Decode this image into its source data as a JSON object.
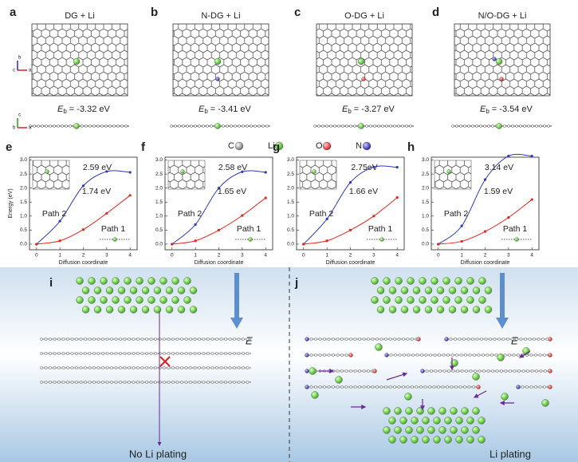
{
  "panels": [
    {
      "label": "a",
      "title": "DG + Li",
      "energy": "= -3.32 eV"
    },
    {
      "label": "b",
      "title": "N-DG + Li",
      "energy": "= -3.41 eV"
    },
    {
      "label": "c",
      "title": "O-DG + Li",
      "energy": "= -3.27 eV"
    },
    {
      "label": "d",
      "title": "N/O-DG + Li",
      "energy": "= -3.54 eV"
    }
  ],
  "energy_symbol": "E",
  "energy_subscript": "b",
  "crystal_axes": {
    "top": [
      "b",
      "c",
      "a"
    ],
    "side": [
      "c",
      "b",
      "a"
    ]
  },
  "legend": [
    "C",
    "Li",
    "O",
    "N"
  ],
  "chart_data": [
    {
      "type": "line",
      "label": "e",
      "xlabel": "Diffusion coordinate",
      "ylabel": "Energy (eV)",
      "x": [
        0,
        1,
        2,
        3,
        4
      ],
      "xlim": [
        -0.3,
        4.3
      ],
      "ylim": [
        -0.2,
        3.1
      ],
      "xticks": [
        0,
        1,
        2,
        3,
        4
      ],
      "yticks": [
        {
          "value": 0,
          "label": "0.0"
        },
        {
          "value": 0.5,
          "label": "0.5"
        },
        {
          "value": 1,
          "label": "1.0"
        },
        {
          "value": 1.5,
          "label": "1.5"
        },
        {
          "value": 2,
          "label": "2.0"
        },
        {
          "value": 2.5,
          "label": "2.5"
        },
        {
          "value": 3,
          "label": "3.0"
        }
      ],
      "series": [
        {
          "name": "Path 2",
          "color": "#2b3bb8",
          "values": [
            0,
            0.82,
            2.08,
            2.59,
            2.56
          ],
          "annotation": "2.59 eV"
        },
        {
          "name": "Path 1",
          "color": "#e8251c",
          "values": [
            0,
            0.12,
            0.52,
            1.1,
            1.74
          ],
          "annotation": "1.74 eV"
        }
      ]
    },
    {
      "type": "line",
      "label": "f",
      "xlabel": "Diffusion coordinate",
      "x": [
        0,
        1,
        2,
        3,
        4
      ],
      "xlim": [
        -0.3,
        4.3
      ],
      "ylim": [
        -0.2,
        3.1
      ],
      "xticks": [
        0,
        1,
        2,
        3,
        4
      ],
      "yticks": [
        {
          "value": 0,
          "label": "0.0"
        },
        {
          "value": 0.5,
          "label": "0.5"
        },
        {
          "value": 1,
          "label": "1.0"
        },
        {
          "value": 1.5,
          "label": "1.5"
        },
        {
          "value": 2,
          "label": "2.0"
        },
        {
          "value": 2.5,
          "label": "2.5"
        },
        {
          "value": 3,
          "label": "3.0"
        }
      ],
      "series": [
        {
          "name": "Path 2",
          "color": "#2b3bb8",
          "values": [
            0,
            0.7,
            2.0,
            2.58,
            2.56
          ],
          "annotation": "2.58 eV"
        },
        {
          "name": "Path 1",
          "color": "#e8251c",
          "values": [
            0,
            0.12,
            0.5,
            1.02,
            1.65
          ],
          "annotation": "1.65 eV"
        }
      ]
    },
    {
      "type": "line",
      "label": "g",
      "xlabel": "Diffusion coordinate",
      "x": [
        0,
        1,
        2,
        3,
        4
      ],
      "xlim": [
        -0.3,
        4.3
      ],
      "ylim": [
        -0.2,
        3.1
      ],
      "xticks": [
        0,
        1,
        2,
        3,
        4
      ],
      "yticks": [
        {
          "value": 0,
          "label": "0.0"
        },
        {
          "value": 0.5,
          "label": "0.5"
        },
        {
          "value": 1,
          "label": "1.0"
        },
        {
          "value": 1.5,
          "label": "1.5"
        },
        {
          "value": 2,
          "label": "2.0"
        },
        {
          "value": 2.5,
          "label": "2.5"
        },
        {
          "value": 3,
          "label": "3.0"
        }
      ],
      "series": [
        {
          "name": "Path 2",
          "color": "#2b3bb8",
          "values": [
            0,
            0.9,
            2.2,
            2.75,
            2.74
          ],
          "annotation": "2.75eV"
        },
        {
          "name": "Path 1",
          "color": "#e8251c",
          "values": [
            0,
            0.12,
            0.5,
            1.0,
            1.66
          ],
          "annotation": "1.66 eV"
        }
      ]
    },
    {
      "type": "line",
      "label": "h",
      "xlabel": "Diffusion coordinate",
      "x": [
        0,
        1,
        2,
        3,
        4
      ],
      "xlim": [
        -0.3,
        4.3
      ],
      "ylim": [
        -0.2,
        3.1
      ],
      "xticks": [
        0,
        1,
        2,
        3,
        4
      ],
      "yticks": [
        {
          "value": 0,
          "label": "0.0"
        },
        {
          "value": 0.5,
          "label": "0.5"
        },
        {
          "value": 1,
          "label": "1.0"
        },
        {
          "value": 1.5,
          "label": "1.5"
        },
        {
          "value": 2,
          "label": "2.0"
        },
        {
          "value": 2.5,
          "label": "2.5"
        },
        {
          "value": 3,
          "label": "3.0"
        }
      ],
      "series": [
        {
          "name": "Path 2",
          "color": "#2b3bb8",
          "values": [
            0,
            0.65,
            2.3,
            3.14,
            3.14
          ],
          "annotation": "3.14 eV"
        },
        {
          "name": "Path 1",
          "color": "#e8251c",
          "values": [
            0,
            0.1,
            0.45,
            0.95,
            1.59
          ],
          "annotation": "1.59 eV"
        }
      ]
    }
  ],
  "bottom": [
    {
      "label": "i",
      "field": "E",
      "caption": "No Li plating"
    },
    {
      "label": "j",
      "field": "E",
      "caption": "Li plating"
    }
  ]
}
